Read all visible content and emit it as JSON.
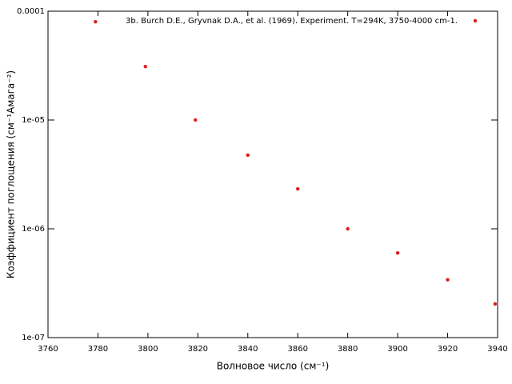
{
  "chart_data": {
    "type": "scatter",
    "x_label": "Волновое число (см⁻¹)",
    "y_label": "Коэффициент поглощения (см⁻¹Амага⁻²)",
    "xlim": [
      3760,
      3940
    ],
    "xticks": [
      3760,
      3780,
      3800,
      3820,
      3840,
      3860,
      3880,
      3900,
      3920,
      3940
    ],
    "ylim": [
      1e-07,
      0.0001
    ],
    "yticks": [
      {
        "value": 1e-07,
        "label": "1e-07"
      },
      {
        "value": 1e-06,
        "label": "1e-06"
      },
      {
        "value": 1e-05,
        "label": "1e-05"
      },
      {
        "value": 0.0001,
        "label": "0.0001"
      }
    ],
    "log_y": true,
    "legend_position": "top-right",
    "series": [
      {
        "name": "3b. Burch D.E., Gryvnak D.A., et al. (1969). Experiment. T=294K, 3750-4000 cm-1.",
        "color": "#dd1c1c",
        "x": [
          3779,
          3799,
          3819,
          3840,
          3860,
          3880,
          3900,
          3920,
          3939
        ],
        "values": [
          8e-05,
          3.1e-05,
          1e-05,
          4.75e-06,
          2.33e-06,
          1e-06,
          6e-07,
          3.4e-07,
          2.04e-07
        ]
      }
    ]
  }
}
